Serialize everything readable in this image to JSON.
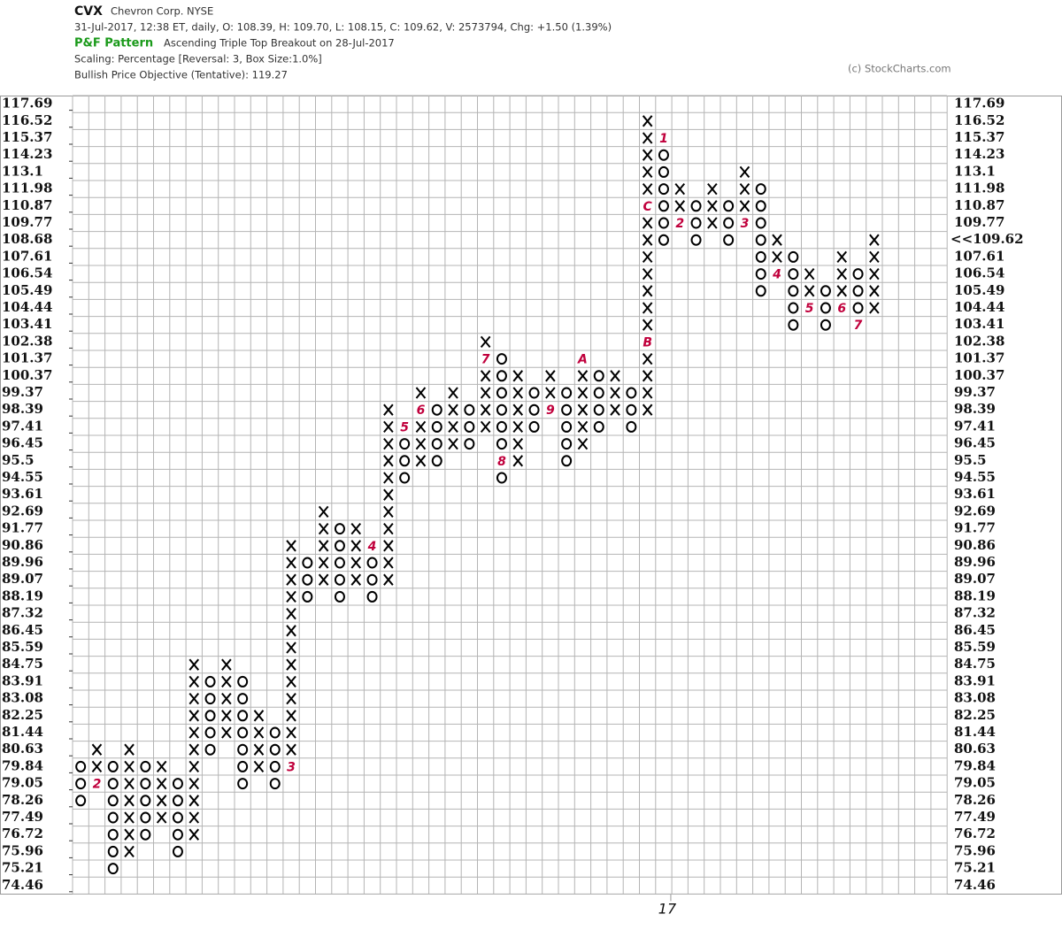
{
  "chart_data": {
    "type": "pnf",
    "symbol": "CVX",
    "name": "Chevron Corp. NYSE",
    "info": "31-Jul-2017, 12:38 ET, daily, O: 108.39, H: 109.70, L: 108.15, C: 109.62, V: 2573794, Chg: +1.50 (1.39%)",
    "pattern_label": "P&F Pattern",
    "pattern": "Ascending Triple Top Breakout on 28-Jul-2017",
    "scaling": "Scaling: Percentage [Reversal: 3, Box Size:1.0%]",
    "objective": "Bullish Price Objective (Tentative): 119.27",
    "copyright": "(c) StockCharts.com",
    "ylim": [
      74.46,
      117.69
    ],
    "yticks": [
      117.69,
      116.52,
      115.37,
      114.23,
      113.1,
      111.98,
      110.87,
      109.77,
      108.68,
      107.61,
      106.54,
      105.49,
      104.44,
      103.41,
      102.38,
      101.37,
      100.37,
      99.37,
      98.39,
      97.41,
      96.45,
      95.5,
      94.55,
      93.61,
      92.69,
      91.77,
      90.86,
      89.96,
      89.07,
      88.19,
      87.32,
      86.45,
      85.59,
      84.75,
      83.91,
      83.08,
      82.25,
      81.44,
      80.63,
      79.84,
      79.05,
      78.26,
      77.49,
      76.72,
      75.96,
      75.21,
      74.46
    ],
    "grid": true,
    "last_price": {
      "value": 109.62,
      "label": "<<109.62"
    },
    "colors": {
      "mark": "#000000",
      "month": "#c0003c",
      "pattern": "#1a9a1a",
      "grid": "#b4b4b4",
      "last": "#c0003c"
    },
    "columns": [
      {
        "dir": "O",
        "low": 78.26,
        "high": 79.84
      },
      {
        "dir": "X",
        "low": 79.05,
        "high": 80.63,
        "months": [
          {
            "value": 79.05,
            "label": "2"
          }
        ]
      },
      {
        "dir": "O",
        "low": 75.21,
        "high": 79.84
      },
      {
        "dir": "X",
        "low": 75.96,
        "high": 80.63
      },
      {
        "dir": "O",
        "low": 76.72,
        "high": 79.84
      },
      {
        "dir": "X",
        "low": 77.49,
        "high": 79.84
      },
      {
        "dir": "O",
        "low": 75.96,
        "high": 79.05
      },
      {
        "dir": "X",
        "low": 76.72,
        "high": 84.75
      },
      {
        "dir": "O",
        "low": 80.63,
        "high": 83.91
      },
      {
        "dir": "X",
        "low": 81.44,
        "high": 84.75
      },
      {
        "dir": "O",
        "low": 79.05,
        "high": 83.91
      },
      {
        "dir": "X",
        "low": 79.84,
        "high": 82.25
      },
      {
        "dir": "O",
        "low": 79.05,
        "high": 81.44
      },
      {
        "dir": "X",
        "low": 79.84,
        "high": 90.86,
        "months": [
          {
            "value": 79.84,
            "label": "3"
          }
        ]
      },
      {
        "dir": "O",
        "low": 88.19,
        "high": 89.96
      },
      {
        "dir": "X",
        "low": 89.07,
        "high": 92.69
      },
      {
        "dir": "O",
        "low": 88.19,
        "high": 91.77
      },
      {
        "dir": "X",
        "low": 89.07,
        "high": 91.77
      },
      {
        "dir": "O",
        "low": 88.19,
        "high": 90.86,
        "months": [
          {
            "value": 90.86,
            "label": "4"
          }
        ]
      },
      {
        "dir": "X",
        "low": 89.07,
        "high": 98.39
      },
      {
        "dir": "O",
        "low": 94.55,
        "high": 97.41,
        "months": [
          {
            "value": 97.41,
            "label": "5"
          }
        ]
      },
      {
        "dir": "X",
        "low": 95.5,
        "high": 99.37,
        "months": [
          {
            "value": 98.39,
            "label": "6"
          }
        ]
      },
      {
        "dir": "O",
        "low": 95.5,
        "high": 98.39
      },
      {
        "dir": "X",
        "low": 96.45,
        "high": 99.37
      },
      {
        "dir": "O",
        "low": 96.45,
        "high": 98.39
      },
      {
        "dir": "X",
        "low": 97.41,
        "high": 102.38,
        "months": [
          {
            "value": 101.37,
            "label": "7"
          }
        ]
      },
      {
        "dir": "O",
        "low": 94.55,
        "high": 101.37,
        "months": [
          {
            "value": 95.5,
            "label": "8"
          }
        ]
      },
      {
        "dir": "X",
        "low": 95.5,
        "high": 100.37
      },
      {
        "dir": "O",
        "low": 97.41,
        "high": 99.37
      },
      {
        "dir": "X",
        "low": 98.39,
        "high": 100.37,
        "months": [
          {
            "value": 98.39,
            "label": "9"
          }
        ]
      },
      {
        "dir": "O",
        "low": 95.5,
        "high": 99.37
      },
      {
        "dir": "X",
        "low": 96.45,
        "high": 101.37,
        "months": [
          {
            "value": 101.37,
            "label": "A"
          }
        ]
      },
      {
        "dir": "O",
        "low": 97.41,
        "high": 100.37
      },
      {
        "dir": "X",
        "low": 98.39,
        "high": 100.37
      },
      {
        "dir": "O",
        "low": 97.41,
        "high": 99.37
      },
      {
        "dir": "X",
        "low": 98.39,
        "high": 116.52,
        "months": [
          {
            "value": 102.38,
            "label": "B"
          },
          {
            "value": 110.87,
            "label": "C"
          }
        ]
      },
      {
        "dir": "O",
        "low": 108.68,
        "high": 115.37,
        "months": [
          {
            "value": 115.37,
            "label": "1"
          }
        ],
        "year_label": "17"
      },
      {
        "dir": "X",
        "low": 109.77,
        "high": 111.98,
        "months": [
          {
            "value": 109.77,
            "label": "2"
          }
        ]
      },
      {
        "dir": "O",
        "low": 108.68,
        "high": 110.87
      },
      {
        "dir": "X",
        "low": 109.77,
        "high": 111.98
      },
      {
        "dir": "O",
        "low": 108.68,
        "high": 110.87
      },
      {
        "dir": "X",
        "low": 109.77,
        "high": 113.1,
        "months": [
          {
            "value": 109.77,
            "label": "3"
          }
        ]
      },
      {
        "dir": "O",
        "low": 105.49,
        "high": 111.98
      },
      {
        "dir": "X",
        "low": 106.54,
        "high": 108.68,
        "months": [
          {
            "value": 106.54,
            "label": "4"
          }
        ]
      },
      {
        "dir": "O",
        "low": 103.41,
        "high": 107.61
      },
      {
        "dir": "X",
        "low": 104.44,
        "high": 106.54,
        "months": [
          {
            "value": 104.44,
            "label": "5"
          }
        ]
      },
      {
        "dir": "O",
        "low": 103.41,
        "high": 105.49
      },
      {
        "dir": "X",
        "low": 104.44,
        "high": 107.61,
        "months": [
          {
            "value": 104.44,
            "label": "6"
          }
        ]
      },
      {
        "dir": "O",
        "low": 103.41,
        "high": 106.54,
        "months": [
          {
            "value": 103.41,
            "label": "7"
          }
        ]
      },
      {
        "dir": "X",
        "low": 104.44,
        "high": 108.68
      }
    ]
  }
}
